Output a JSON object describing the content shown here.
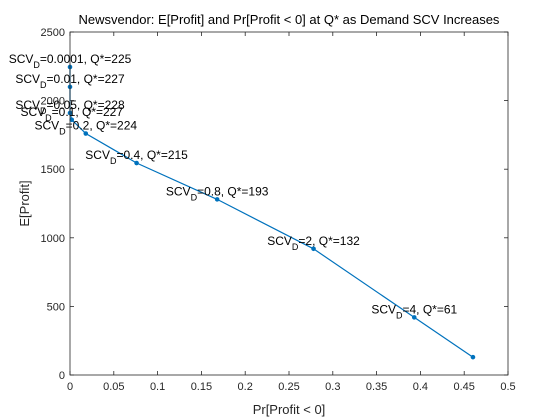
{
  "chart_data": {
    "type": "line",
    "title": "Newsvendor: E[Profit] and Pr[Profit < 0] at Q* as Demand SCV Increases",
    "xlabel": "Pr[Profit < 0]",
    "ylabel": "E[Profit]",
    "xlim": [
      0,
      0.5
    ],
    "ylim": [
      0,
      2500
    ],
    "xticks": [
      0,
      0.05,
      0.1,
      0.15,
      0.2,
      0.25,
      0.3,
      0.35,
      0.4,
      0.45,
      0.5
    ],
    "xticklabels": [
      "0",
      "0.05",
      "0.1",
      "0.15",
      "0.2",
      "0.25",
      "0.3",
      "0.35",
      "0.4",
      "0.45",
      "0.5"
    ],
    "yticks": [
      0,
      500,
      1000,
      1500,
      2000,
      2500
    ],
    "yticklabels": [
      "0",
      "500",
      "1000",
      "1500",
      "2000",
      "2500"
    ],
    "grid": false,
    "line_color": "#0072BD",
    "points": [
      {
        "x": 0.0,
        "y": 2245,
        "scv": "0.0001",
        "q": "225"
      },
      {
        "x": 0.0,
        "y": 2100,
        "scv": "0.01",
        "q": "227"
      },
      {
        "x": 0.0,
        "y": 1910,
        "scv": "0.05",
        "q": "228"
      },
      {
        "x": 0.002,
        "y": 1860,
        "scv": "0.1",
        "q": "227"
      },
      {
        "x": 0.018,
        "y": 1760,
        "scv": "0.2",
        "q": "224"
      },
      {
        "x": 0.076,
        "y": 1545,
        "scv": "0.4",
        "q": "215"
      },
      {
        "x": 0.168,
        "y": 1280,
        "scv": "0.8",
        "q": "193"
      },
      {
        "x": 0.278,
        "y": 920,
        "scv": "2",
        "q": "132"
      },
      {
        "x": 0.393,
        "y": 420,
        "scv": "4",
        "q": "61"
      },
      {
        "x": 0.46,
        "y": 130
      }
    ]
  }
}
